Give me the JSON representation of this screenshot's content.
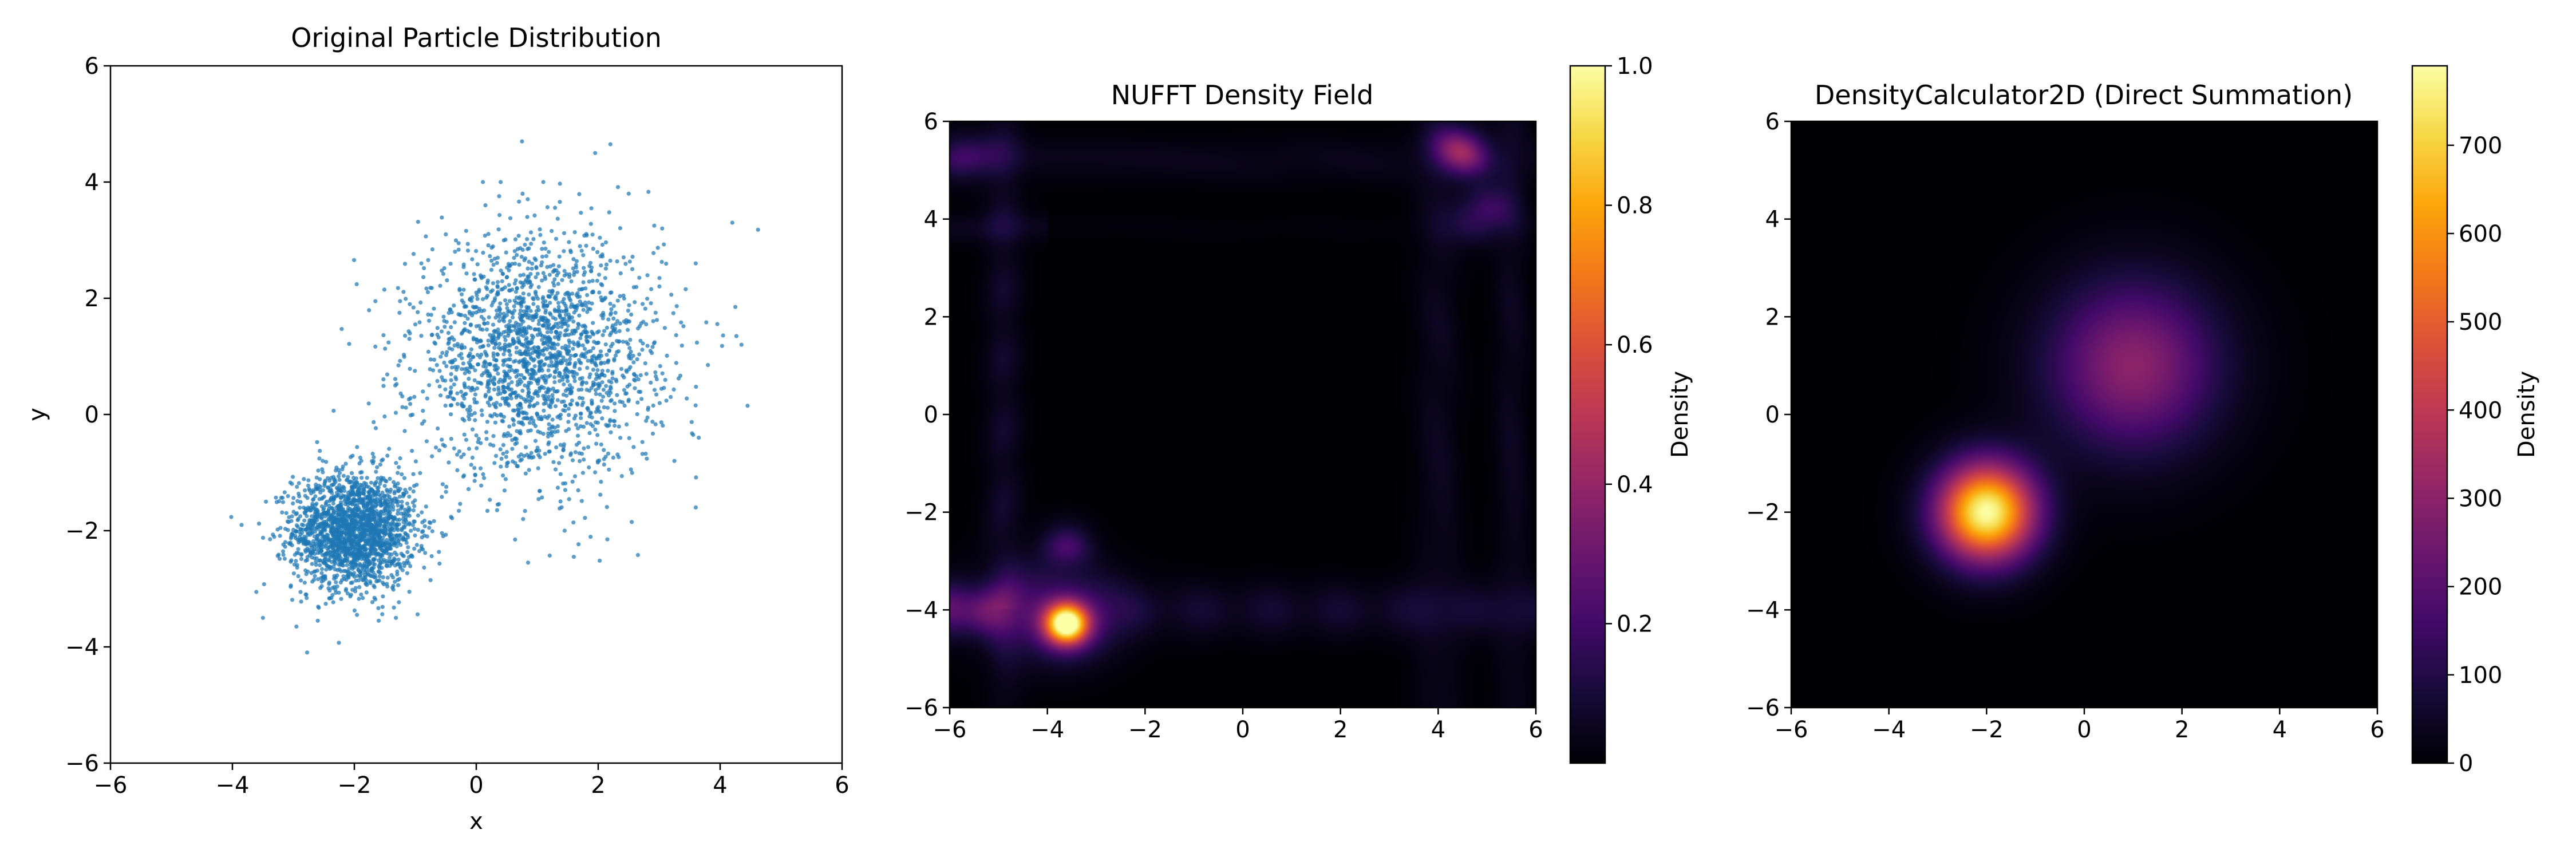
{
  "chart_data": [
    {
      "type": "scatter",
      "title": "Original Particle Distribution",
      "xlabel": "x",
      "ylabel": "y",
      "xlim": [
        -6,
        6
      ],
      "ylim": [
        -6,
        6
      ],
      "xticks": [
        -6,
        -4,
        -2,
        0,
        2,
        4,
        6
      ],
      "yticks": [
        -6,
        -4,
        -2,
        0,
        2,
        4,
        6
      ],
      "grid": false,
      "color": "#1f77b4",
      "clusters": [
        {
          "center": [
            -2,
            -2
          ],
          "std": 0.5,
          "count": 2000
        },
        {
          "center": [
            1,
            1
          ],
          "std": 1.0,
          "count": 2000
        }
      ],
      "points": [
        [
          -3.85,
          -1.9
        ],
        [
          -3.45,
          -1.5
        ],
        [
          -3.5,
          -3.5
        ],
        [
          -2.95,
          -3.65
        ],
        [
          -2.6,
          -3.55
        ],
        [
          -1.6,
          -3.55
        ],
        [
          -0.75,
          -2.85
        ],
        [
          -0.55,
          -1.2
        ],
        [
          -0.6,
          0.75
        ],
        [
          -1.0,
          1.55
        ],
        [
          -1.25,
          1.95
        ],
        [
          -0.9,
          2.6
        ],
        [
          -0.5,
          3.1
        ],
        [
          0.15,
          3.6
        ],
        [
          0.4,
          4.0
        ],
        [
          0.75,
          4.7
        ],
        [
          1.1,
          4.0
        ],
        [
          1.95,
          4.5
        ],
        [
          2.2,
          4.65
        ],
        [
          2.5,
          3.8
        ],
        [
          3.05,
          3.2
        ],
        [
          3.6,
          2.6
        ],
        [
          4.25,
          1.85
        ],
        [
          4.2,
          3.3
        ],
        [
          4.45,
          0.15
        ],
        [
          4.35,
          1.2
        ],
        [
          3.6,
          -1.6
        ],
        [
          3.25,
          -0.8
        ],
        [
          2.55,
          -1.85
        ],
        [
          2.15,
          -2.15
        ],
        [
          1.6,
          -2.45
        ],
        [
          1.45,
          -2.0
        ],
        [
          0.85,
          -2.55
        ],
        [
          0.35,
          -1.55
        ],
        [
          3.8,
          0.85
        ],
        [
          3.65,
          -0.4
        ],
        [
          -0.2,
          -1.05
        ]
      ]
    },
    {
      "type": "heatmap",
      "title": "NUFFT Density Field",
      "xlim": [
        -6,
        6
      ],
      "ylim": [
        -6,
        6
      ],
      "xticks": [
        -6,
        -4,
        -2,
        0,
        2,
        4,
        6
      ],
      "yticks": [
        -6,
        -4,
        -2,
        0,
        2,
        4,
        6
      ],
      "colormap": "inferno",
      "colorbar": {
        "label": "Density",
        "range": [
          0,
          1
        ],
        "ticks": [
          0.2,
          0.4,
          0.6,
          0.8,
          1.0
        ],
        "tick_labels": [
          "0.2",
          "0.4",
          "0.6",
          "0.8",
          "1.0"
        ]
      },
      "peaks": [
        {
          "x": -3.6,
          "y": -4.3,
          "value": 1.0
        },
        {
          "x": -5.7,
          "y": -4.0,
          "value": 0.3
        },
        {
          "x": -3.6,
          "y": -2.6,
          "value": 0.22
        },
        {
          "x": 4.5,
          "y": 5.4,
          "value": 0.38
        },
        {
          "x": 4.9,
          "y": 4.1,
          "value": 0.28
        },
        {
          "x": -5.7,
          "y": 5.3,
          "value": 0.15
        }
      ]
    },
    {
      "type": "heatmap",
      "title": "DensityCalculator2D (Direct Summation)",
      "xlim": [
        -6,
        6
      ],
      "ylim": [
        -6,
        6
      ],
      "xticks": [
        -6,
        -4,
        -2,
        0,
        2,
        4,
        6
      ],
      "yticks": [
        -6,
        -4,
        -2,
        0,
        2,
        4,
        6
      ],
      "colormap": "inferno",
      "colorbar": {
        "label": "Density",
        "range": [
          0,
          790
        ],
        "ticks": [
          0,
          100,
          200,
          300,
          400,
          500,
          600,
          700
        ],
        "tick_labels": [
          "0",
          "100",
          "200",
          "300",
          "400",
          "500",
          "600",
          "700"
        ]
      },
      "peaks": [
        {
          "x": -2,
          "y": -2,
          "value": 790
        },
        {
          "x": 1,
          "y": 1,
          "value": 300
        }
      ]
    }
  ]
}
